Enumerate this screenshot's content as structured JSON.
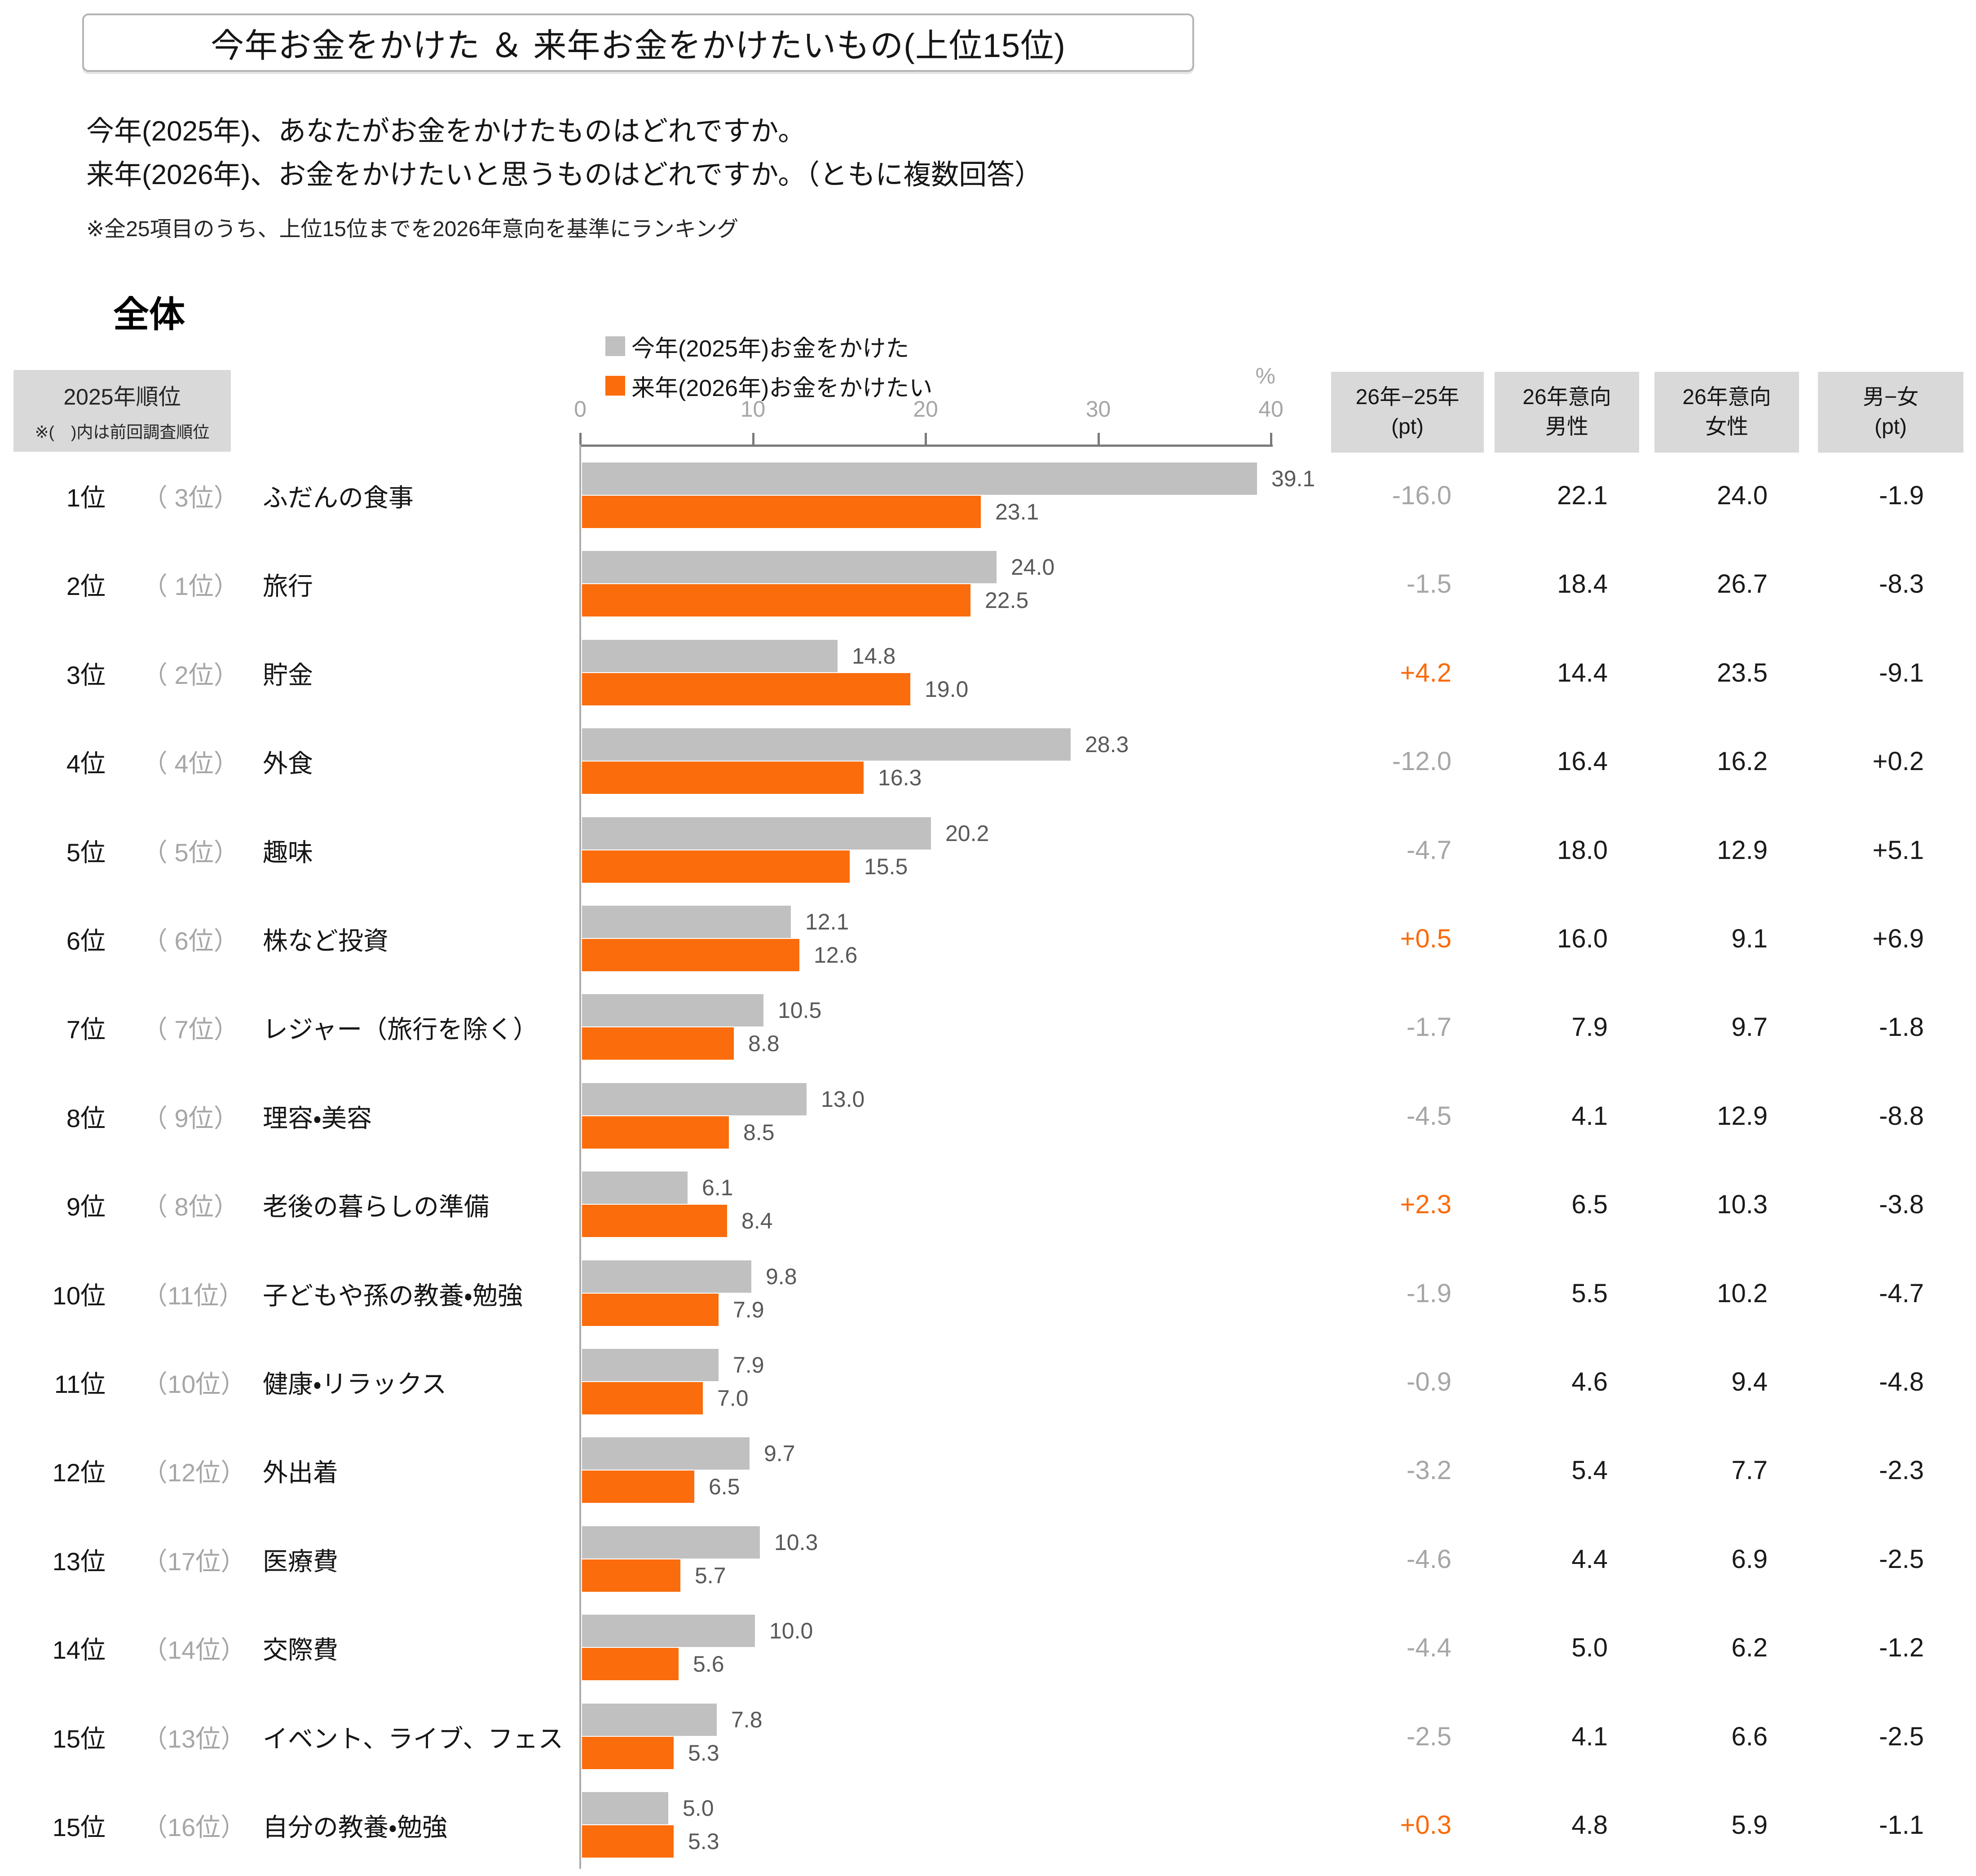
{
  "header": {
    "title": "今年お金をかけた ＆ 来年お金をかけたいもの(上位15位)",
    "question_lines": [
      "今年(2025年)、あなたがお金をかけたものはどれですか。",
      "来年(2026年)、お金をかけたいと思うものはどれですか。（ともに複数回答）"
    ],
    "note": "※全25項目のうち、上位15位までを2026年意向を基準にランキング"
  },
  "section": {
    "label": "全体"
  },
  "legend": {
    "items": [
      {
        "label": "今年(2025年)お金をかけた",
        "color": "#C0C0C0"
      },
      {
        "label": "来年(2026年)お金をかけたい",
        "color": "#FA6C0C"
      }
    ]
  },
  "axis": {
    "unit": "%",
    "ticks": [
      "0",
      "10",
      "20",
      "30",
      "40"
    ],
    "max": 40
  },
  "row_header": {
    "line1": "2025年順位",
    "line2": "※(　)内は前回調査順位"
  },
  "table": {
    "columns": [
      {
        "line1": "26年−25年",
        "line2": "(pt)"
      },
      {
        "line1": "26年意向",
        "line2": "男性"
      },
      {
        "line1": "26年意向",
        "line2": "女性"
      },
      {
        "line1": "男−女",
        "line2": "(pt)"
      }
    ]
  },
  "colors": {
    "bar_2025": "#C0C0C0",
    "bar_2026": "#FA6C0C",
    "positive_diff": "#FB6A0A",
    "negative_diff": "#a6a6a6",
    "cell_text": "#1a1a1a",
    "header_box_bg": "#d9d9d9",
    "axis_line": "#7a7a7a"
  },
  "chart_data": {
    "type": "bar",
    "orientation": "horizontal",
    "title": "今年お金をかけた ＆ 来年お金をかけたいもの(上位15位)",
    "unit": "%",
    "xlim": [
      0,
      40
    ],
    "xticks": [
      0,
      10,
      20,
      30,
      40
    ],
    "legend_position": "top",
    "categories": [
      "ふだんの食事",
      "旅行",
      "貯金",
      "外食",
      "趣味",
      "株など投資",
      "レジャー（旅行を除く）",
      "理容・美容",
      "老後の暮らしの準備",
      "子どもや孫の教養・勉強",
      "健康・リラックス",
      "外出着",
      "医療費",
      "交際費",
      "イベント、ライブ、フェス",
      "自分の教養・勉強"
    ],
    "series": [
      {
        "name": "今年(2025年)お金をかけた",
        "color": "#C0C0C0",
        "values": [
          39.1,
          24.0,
          14.8,
          28.3,
          20.2,
          12.1,
          10.5,
          13.0,
          6.1,
          9.8,
          7.9,
          9.7,
          10.3,
          10.0,
          7.8,
          5.0
        ]
      },
      {
        "name": "来年(2026年)お金をかけたい",
        "color": "#FA6C0C",
        "values": [
          23.1,
          22.5,
          19.0,
          16.3,
          15.5,
          12.6,
          8.8,
          8.5,
          8.4,
          7.9,
          7.0,
          6.5,
          5.7,
          5.6,
          5.3,
          5.3
        ]
      }
    ],
    "rows": [
      {
        "rank": "1位",
        "prev_rank": "（ 3位）",
        "category": "ふだんの食事",
        "spent_2025": 39.1,
        "want_2026": 23.1,
        "spent_label": "39.1",
        "want_label": "23.1",
        "diff": "-16.0",
        "male": "22.1",
        "female": "24.0",
        "male_minus_female": "-1.9"
      },
      {
        "rank": "2位",
        "prev_rank": "（ 1位）",
        "category": "旅行",
        "spent_2025": 24.0,
        "want_2026": 22.5,
        "spent_label": "24.0",
        "want_label": "22.5",
        "diff": "-1.5",
        "male": "18.4",
        "female": "26.7",
        "male_minus_female": "-8.3"
      },
      {
        "rank": "3位",
        "prev_rank": "（ 2位）",
        "category": "貯金",
        "spent_2025": 14.8,
        "want_2026": 19.0,
        "spent_label": "14.8",
        "want_label": "19.0",
        "diff": "+4.2",
        "male": "14.4",
        "female": "23.5",
        "male_minus_female": "-9.1"
      },
      {
        "rank": "4位",
        "prev_rank": "（ 4位）",
        "category": "外食",
        "spent_2025": 28.3,
        "want_2026": 16.3,
        "spent_label": "28.3",
        "want_label": "16.3",
        "diff": "-12.0",
        "male": "16.4",
        "female": "16.2",
        "male_minus_female": "+0.2"
      },
      {
        "rank": "5位",
        "prev_rank": "（ 5位）",
        "category": "趣味",
        "spent_2025": 20.2,
        "want_2026": 15.5,
        "spent_label": "20.2",
        "want_label": "15.5",
        "diff": "-4.7",
        "male": "18.0",
        "female": "12.9",
        "male_minus_female": "+5.1"
      },
      {
        "rank": "6位",
        "prev_rank": "（ 6位）",
        "category": "株など投資",
        "spent_2025": 12.1,
        "want_2026": 12.6,
        "spent_label": "12.1",
        "want_label": "12.6",
        "diff": "+0.5",
        "male": "16.0",
        "female": "9.1",
        "male_minus_female": "+6.9"
      },
      {
        "rank": "7位",
        "prev_rank": "（ 7位）",
        "category": "レジャー（旅行を除く）",
        "spent_2025": 10.5,
        "want_2026": 8.8,
        "spent_label": "10.5",
        "want_label": "8.8",
        "diff": "-1.7",
        "male": "7.9",
        "female": "9.7",
        "male_minus_female": "-1.8"
      },
      {
        "rank": "8位",
        "prev_rank": "（ 9位）",
        "category": "理容・美容",
        "spent_2025": 13.0,
        "want_2026": 8.5,
        "spent_label": "13.0",
        "want_label": "8.5",
        "diff": "-4.5",
        "male": "4.1",
        "female": "12.9",
        "male_minus_female": "-8.8"
      },
      {
        "rank": "9位",
        "prev_rank": "（ 8位）",
        "category": "老後の暮らしの準備",
        "spent_2025": 6.1,
        "want_2026": 8.4,
        "spent_label": "6.1",
        "want_label": "8.4",
        "diff": "+2.3",
        "male": "6.5",
        "female": "10.3",
        "male_minus_female": "-3.8"
      },
      {
        "rank": "10位",
        "prev_rank": "（11位）",
        "category": "子どもや孫の教養・勉強",
        "spent_2025": 9.8,
        "want_2026": 7.9,
        "spent_label": "9.8",
        "want_label": "7.9",
        "diff": "-1.9",
        "male": "5.5",
        "female": "10.2",
        "male_minus_female": "-4.7"
      },
      {
        "rank": "11位",
        "prev_rank": "（10位）",
        "category": "健康・リラックス",
        "spent_2025": 7.9,
        "want_2026": 7.0,
        "spent_label": "7.9",
        "want_label": "7.0",
        "diff": "-0.9",
        "male": "4.6",
        "female": "9.4",
        "male_minus_female": "-4.8"
      },
      {
        "rank": "12位",
        "prev_rank": "（12位）",
        "category": "外出着",
        "spent_2025": 9.7,
        "want_2026": 6.5,
        "spent_label": "9.7",
        "want_label": "6.5",
        "diff": "-3.2",
        "male": "5.4",
        "female": "7.7",
        "male_minus_female": "-2.3"
      },
      {
        "rank": "13位",
        "prev_rank": "（17位）",
        "category": "医療費",
        "spent_2025": 10.3,
        "want_2026": 5.7,
        "spent_label": "10.3",
        "want_label": "5.7",
        "diff": "-4.6",
        "male": "4.4",
        "female": "6.9",
        "male_minus_female": "-2.5"
      },
      {
        "rank": "14位",
        "prev_rank": "（14位）",
        "category": "交際費",
        "spent_2025": 10.0,
        "want_2026": 5.6,
        "spent_label": "10.0",
        "want_label": "5.6",
        "diff": "-4.4",
        "male": "5.0",
        "female": "6.2",
        "male_minus_female": "-1.2"
      },
      {
        "rank": "15位",
        "prev_rank": "（13位）",
        "category": "イベント、ライブ、フェス",
        "spent_2025": 7.8,
        "want_2026": 5.3,
        "spent_label": "7.8",
        "want_label": "5.3",
        "diff": "-2.5",
        "male": "4.1",
        "female": "6.6",
        "male_minus_female": "-2.5"
      },
      {
        "rank": "15位",
        "prev_rank": "（16位）",
        "category": "自分の教養・勉強",
        "spent_2025": 5.0,
        "want_2026": 5.3,
        "spent_label": "5.0",
        "want_label": "5.3",
        "diff": "+0.3",
        "male": "4.8",
        "female": "5.9",
        "male_minus_female": "-1.1"
      }
    ]
  }
}
